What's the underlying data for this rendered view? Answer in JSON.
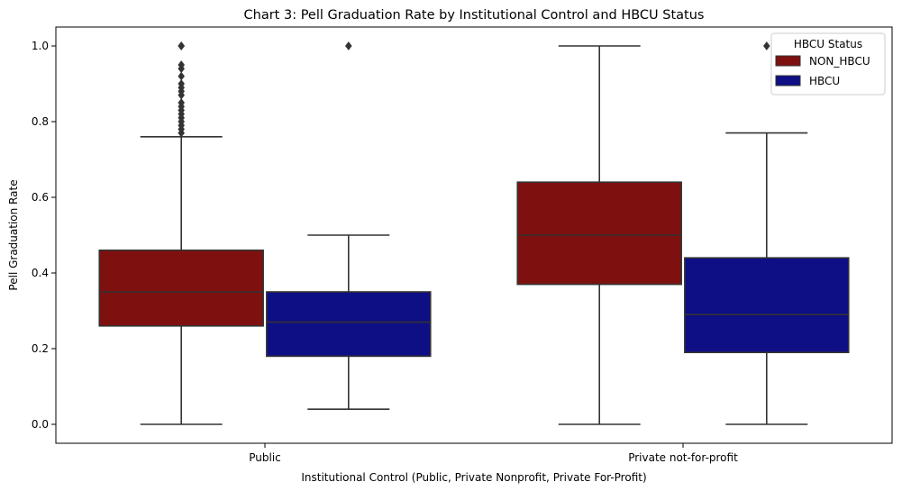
{
  "chart_data": {
    "type": "box",
    "title": "Chart 3: Pell Graduation Rate by Institutional Control and HBCU Status",
    "xlabel": "Institutional Control (Public, Private Nonprofit, Private For-Profit)",
    "ylabel": "Pell Graduation Rate",
    "categories": [
      "Public",
      "Private not-for-profit"
    ],
    "ylim": [
      -0.05,
      1.05
    ],
    "yticks": [
      0.0,
      0.2,
      0.4,
      0.6,
      0.8,
      1.0
    ],
    "yticks_labels": [
      "0.0",
      "0.2",
      "0.4",
      "0.6",
      "0.8",
      "1.0"
    ],
    "grid": false,
    "legend": {
      "title": "HBCU Status",
      "position": "top-right"
    },
    "series": [
      {
        "name": "NON_HBCU",
        "color": "#7f1010",
        "boxes": [
          {
            "category": "Public",
            "whisker_low": 0.0,
            "q1": 0.26,
            "median": 0.35,
            "q3": 0.46,
            "whisker_high": 0.76,
            "outliers": [
              0.77,
              0.78,
              0.79,
              0.8,
              0.81,
              0.82,
              0.83,
              0.84,
              0.85,
              0.87,
              0.88,
              0.89,
              0.9,
              0.92,
              0.94,
              0.95,
              1.0,
              1.0
            ]
          },
          {
            "category": "Private not-for-profit",
            "whisker_low": 0.0,
            "q1": 0.37,
            "median": 0.5,
            "q3": 0.64,
            "whisker_high": 1.0,
            "outliers": []
          }
        ]
      },
      {
        "name": "HBCU",
        "color": "#0e0e85",
        "boxes": [
          {
            "category": "Public",
            "whisker_low": 0.04,
            "q1": 0.18,
            "median": 0.27,
            "q3": 0.35,
            "whisker_high": 0.5,
            "outliers": [
              1.0
            ]
          },
          {
            "category": "Private not-for-profit",
            "whisker_low": 0.0,
            "q1": 0.19,
            "median": 0.29,
            "q3": 0.44,
            "whisker_high": 0.77,
            "outliers": [
              1.0
            ]
          }
        ]
      }
    ]
  }
}
